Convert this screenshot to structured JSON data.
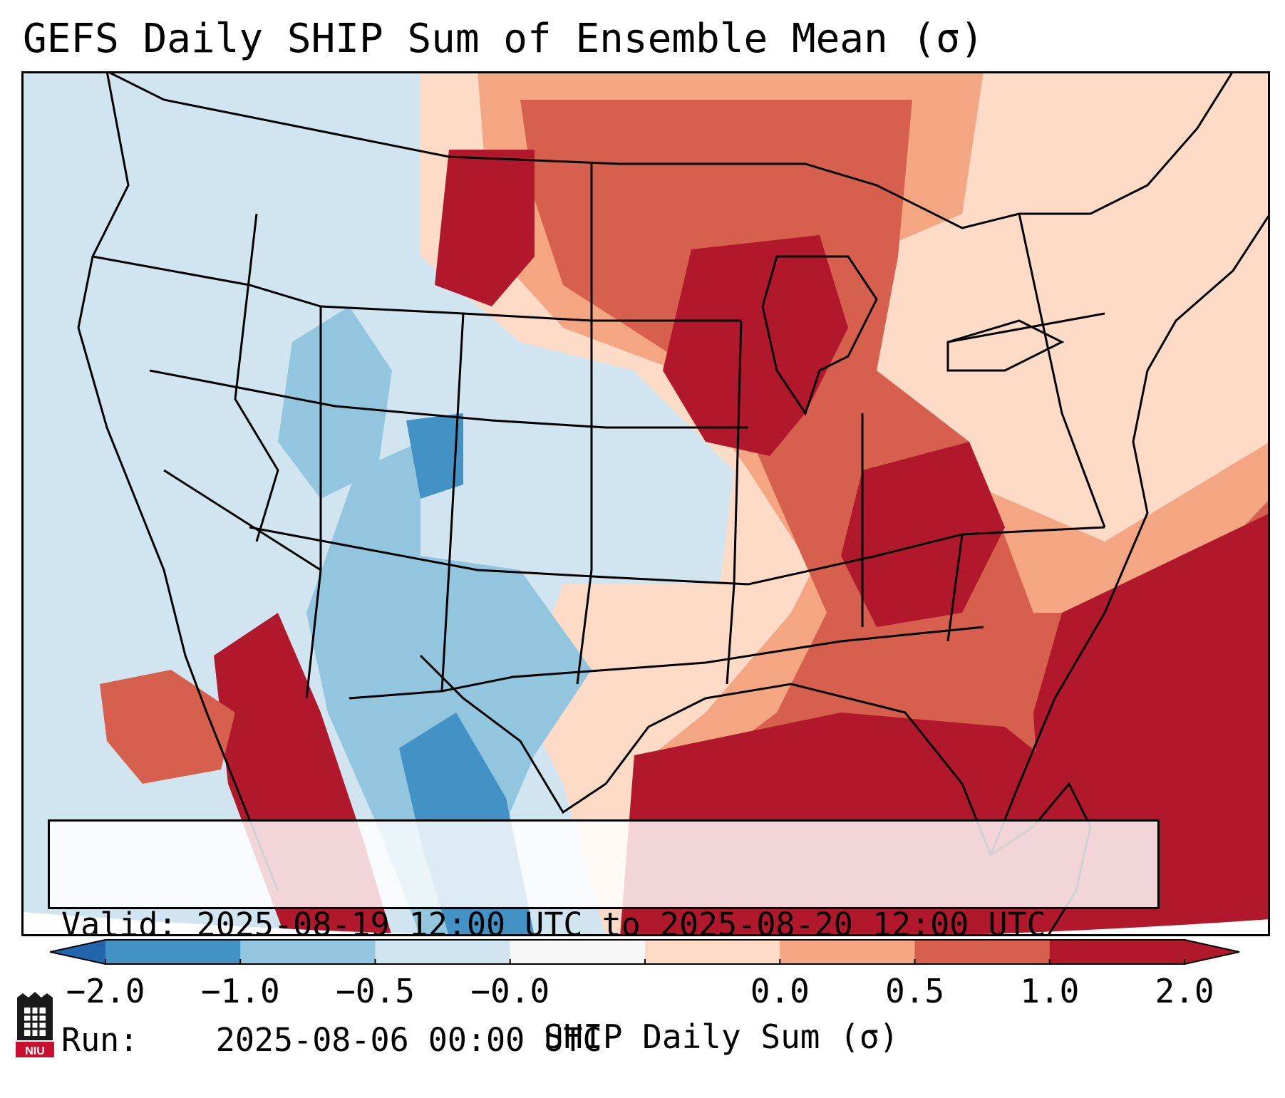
{
  "title": "GEFS Daily SHIP Sum of Ensemble Mean (σ)",
  "info": {
    "valid_label": "Valid:",
    "valid_value": "2025-08-19 12:00 UTC to 2025-08-20 12:00 UTC",
    "run_label": "Run:",
    "run_value": "2025-08-06 00:00 UTC"
  },
  "colorbar": {
    "title": "SHIP Daily Sum (σ)",
    "ticks": [
      "−2.0",
      "−1.0",
      "−0.5",
      "−0.0",
      "0.0",
      "0.5",
      "1.0",
      "2.0"
    ],
    "colors": [
      "#4292c6",
      "#92c5de",
      "#d1e5f0",
      "#f7f7f7",
      "#fddbc7",
      "#f4a582",
      "#d6604d",
      "#b2182b"
    ],
    "under_color": "#2166ac",
    "over_color": "#b2182b"
  },
  "logo": {
    "text": "NIU"
  }
}
